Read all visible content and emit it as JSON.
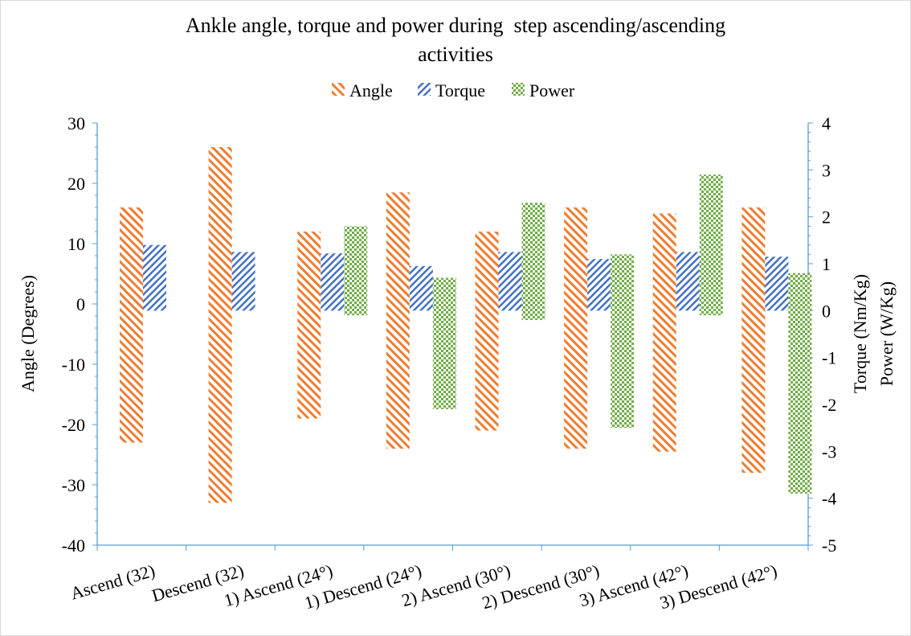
{
  "chart_data": {
    "type": "bar",
    "title_line1": "Ankle angle, torque and power during  step ascending/ascending",
    "title_line2": "activities",
    "ylabel_left": "Angle (Degrees)",
    "ylabel_right_1": "Torque (Nm/Kg)",
    "ylabel_right_2": "Power (W/Kg)",
    "legend_position": "top",
    "grid": false,
    "ylim_left": [
      -40,
      30
    ],
    "ylim_right": [
      -5,
      4
    ],
    "left_ticks": [
      "30",
      "20",
      "10",
      "0",
      "-10",
      "-20",
      "-30",
      "-40"
    ],
    "right_ticks": [
      "4",
      "3",
      "2",
      "1",
      "0",
      "-1",
      "-2",
      "-3",
      "-4",
      "-5"
    ],
    "categories": [
      "Ascend (32)",
      "Descend (32)",
      "1) Ascend (24°)",
      "1) Descend (24°)",
      "2) Ascend (30°)",
      "2) Descend (30°)",
      "3) Ascend (42°)",
      "3) Descend (42°)"
    ],
    "series": [
      {
        "name": "Angle",
        "axis": "left",
        "color": "#ED7D31",
        "pattern": "diagonal-up",
        "ranges": [
          [
            -23,
            16
          ],
          [
            -33,
            26
          ],
          [
            -19,
            12
          ],
          [
            -24,
            18.5
          ],
          [
            -21,
            12
          ],
          [
            -24,
            16
          ],
          [
            -24.5,
            15
          ],
          [
            -28,
            16
          ]
        ]
      },
      {
        "name": "Torque",
        "axis": "right",
        "color": "#4472C4",
        "pattern": "diagonal-down",
        "ranges": [
          [
            0,
            1.4
          ],
          [
            0,
            1.25
          ],
          [
            0,
            1.22
          ],
          [
            0,
            0.95
          ],
          [
            0,
            1.25
          ],
          [
            0,
            1.1
          ],
          [
            0,
            1.25
          ],
          [
            0,
            1.15
          ]
        ]
      },
      {
        "name": "Power",
        "axis": "right",
        "color": "#70AD47",
        "pattern": "checker",
        "ranges": [
          [
            null,
            null
          ],
          [
            null,
            null
          ],
          [
            -0.1,
            1.8
          ],
          [
            -2.1,
            0.7
          ],
          [
            -0.2,
            2.3
          ],
          [
            -2.5,
            1.2
          ],
          [
            -0.1,
            2.9
          ],
          [
            -3.9,
            0.8
          ]
        ]
      }
    ]
  }
}
